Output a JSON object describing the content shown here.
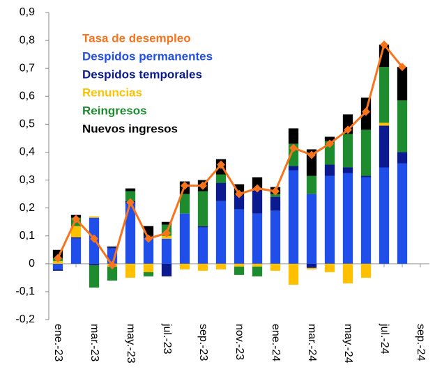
{
  "chart_data": {
    "type": "bar",
    "stacked": true,
    "categories": [
      "ene.-23",
      null,
      "mar.-23",
      null,
      "may.-23",
      null,
      "jul.-23",
      null,
      "sep.-23",
      null,
      "nov.-23",
      null,
      "ene.-24",
      null,
      "mar.-24",
      null,
      "may.-24",
      null,
      "jul.-24",
      null,
      "sep.-24"
    ],
    "series": [
      {
        "name": "Tasa de desempleo",
        "type": "line",
        "color": "#F7741C",
        "values": [
          0.02,
          0.16,
          0.09,
          -0.005,
          0.22,
          0.09,
          0.11,
          0.28,
          0.28,
          0.355,
          0.25,
          0.27,
          0.26,
          0.415,
          0.39,
          0.43,
          0.48,
          0.545,
          0.785,
          0.705,
          null
        ]
      },
      {
        "name": "Despidos permanentes",
        "type": "bar",
        "color": "#1F4FE8",
        "values": [
          -0.02,
          0.09,
          0.165,
          0.055,
          0.215,
          0.09,
          0.09,
          0.18,
          0.13,
          0.225,
          0.195,
          0.18,
          0.19,
          0.335,
          0.25,
          0.315,
          0.325,
          0.31,
          0.345,
          0.36,
          null
        ]
      },
      {
        "name": "Despidos temporales",
        "type": "bar",
        "color": "#0B1B8F",
        "values": [
          -0.005,
          0.005,
          -0.005,
          0.005,
          0.01,
          0.01,
          -0.045,
          0,
          0.005,
          0.065,
          0.05,
          0.085,
          0.05,
          0.015,
          -0.015,
          0.04,
          0.02,
          0.005,
          0.15,
          0.04,
          null
        ]
      },
      {
        "name": "Renuncias",
        "type": "bar",
        "color": "#FFC000",
        "values": [
          0.01,
          0.04,
          0.005,
          -0.01,
          -0.05,
          -0.03,
          0.01,
          -0.02,
          -0.025,
          -0.02,
          -0.01,
          -0.01,
          -0.025,
          -0.075,
          -0.005,
          -0.03,
          -0.07,
          -0.05,
          0.01,
          0,
          null
        ]
      },
      {
        "name": "Reingresos",
        "type": "bar",
        "color": "#1E8C2E",
        "values": [
          0.01,
          0.03,
          -0.08,
          -0.05,
          0.035,
          -0.015,
          0.04,
          0.07,
          0.125,
          0.03,
          -0.03,
          -0.035,
          0.01,
          0.08,
          0.065,
          0.085,
          0.12,
          0.165,
          0.2,
          0.185,
          null
        ]
      },
      {
        "name": "Nuevos ingresos",
        "type": "bar",
        "color": "#000000",
        "values": [
          0.03,
          0.01,
          0,
          0.002,
          0.01,
          0.035,
          0.01,
          0.045,
          0.04,
          0.055,
          0.04,
          0.045,
          0.025,
          0.055,
          0.095,
          0.015,
          0.07,
          0.115,
          0.08,
          0.12,
          null
        ]
      }
    ],
    "ylim": [
      -0.2,
      0.9
    ],
    "yticks": [
      {
        "value": -0.2,
        "label": "-0,2"
      },
      {
        "value": -0.1,
        "label": "-0,1"
      },
      0,
      {
        "value": 0.1,
        "label": "0,1"
      },
      {
        "value": 0.2,
        "label": "0,2"
      },
      {
        "value": 0.3,
        "label": "0,3"
      },
      {
        "value": 0.4,
        "label": "0,4"
      },
      {
        "value": 0.5,
        "label": "0,5"
      },
      {
        "value": 0.6,
        "label": "0,6"
      },
      {
        "value": 0.7,
        "label": "0,7"
      },
      {
        "value": 0.8,
        "label": "0,8"
      },
      {
        "value": 0.9,
        "label": "0,9"
      }
    ],
    "grid": false,
    "legend": "top-left"
  }
}
